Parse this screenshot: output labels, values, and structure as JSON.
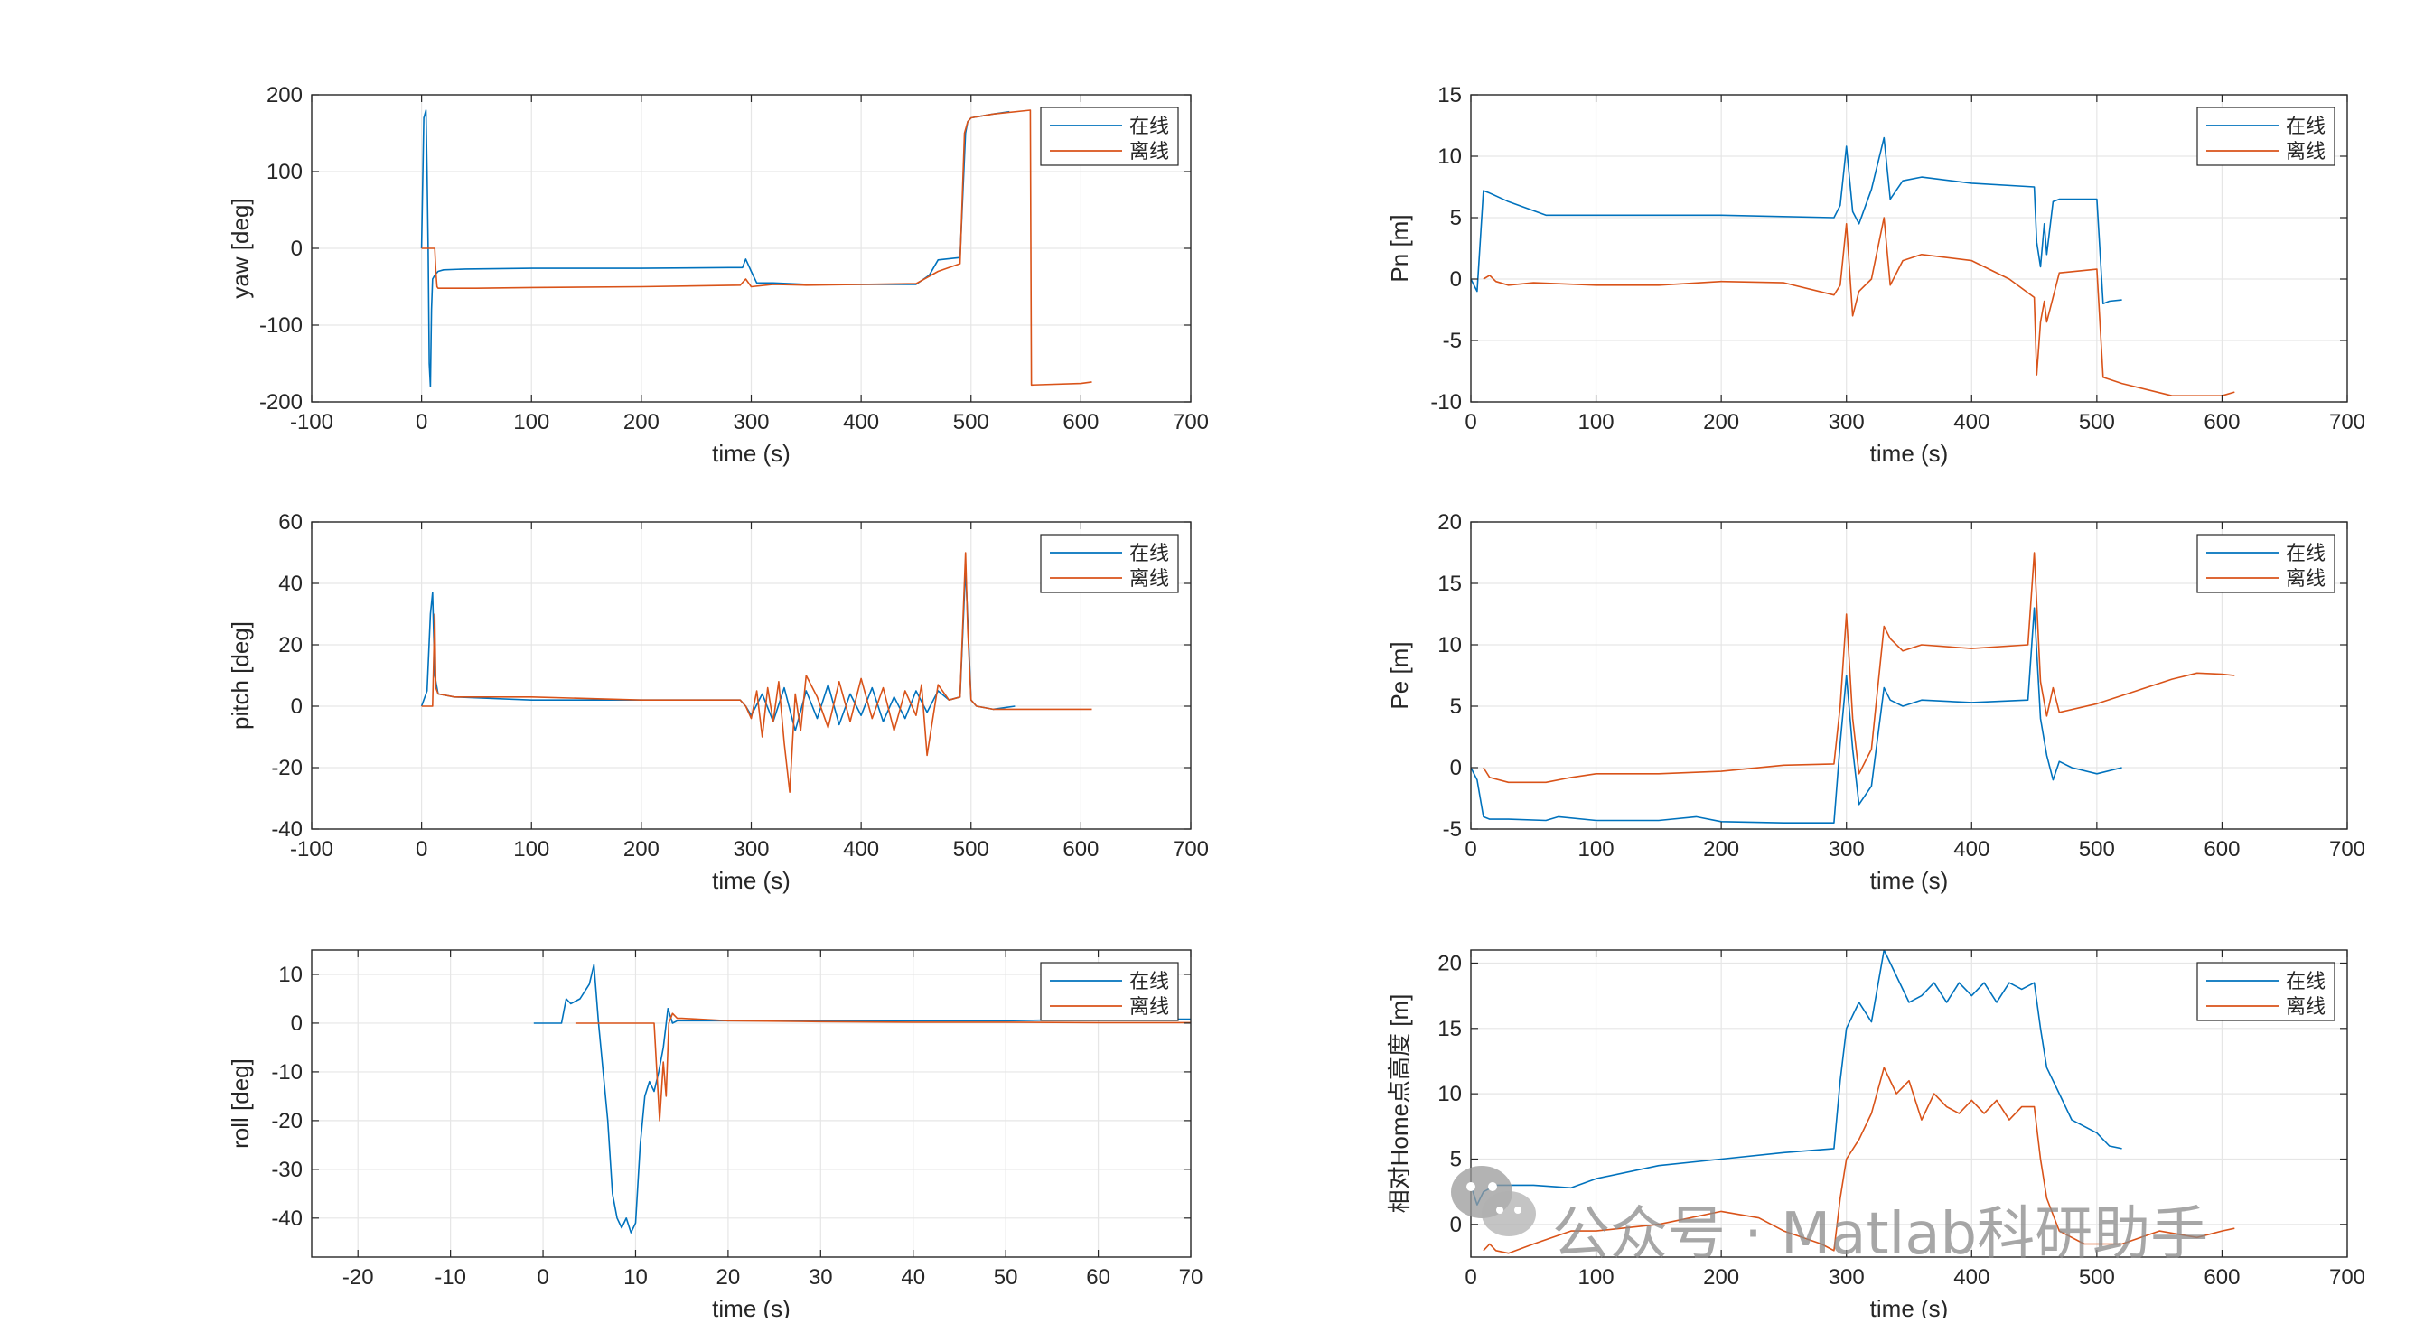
{
  "colors": {
    "online": "#0072BD",
    "offline": "#D95319",
    "axis": "#262626",
    "grid": "#E6E6E6"
  },
  "legend": {
    "online": "在线",
    "offline": "离线"
  },
  "watermark": {
    "icon": "wechat-icon",
    "text": "公众号 · Matlab科研助手"
  },
  "chart_data": [
    {
      "id": "yaw",
      "type": "line",
      "xlabel": "time (s)",
      "ylabel": "yaw [deg]",
      "xlim": [
        -100,
        700
      ],
      "ylim": [
        -200,
        200
      ],
      "xticks": [
        -100,
        0,
        100,
        200,
        300,
        400,
        500,
        600,
        700
      ],
      "yticks": [
        -200,
        -100,
        0,
        100,
        200
      ],
      "grid": true,
      "legend_position": "top-right",
      "series": [
        {
          "name": "在线",
          "x": [
            0,
            2,
            4,
            5,
            6,
            7,
            8,
            9,
            10,
            12,
            15,
            20,
            40,
            100,
            200,
            280,
            292,
            295,
            300,
            305,
            320,
            350,
            400,
            450,
            462,
            470,
            490,
            495,
            497,
            500,
            520,
            535
          ],
          "y": [
            0,
            170,
            180,
            100,
            0,
            -150,
            -180,
            -80,
            -40,
            -35,
            -30,
            -28,
            -27,
            -26,
            -26,
            -25,
            -25,
            -14,
            -30,
            -45,
            -45,
            -47,
            -47,
            -47,
            -35,
            -15,
            -12,
            150,
            165,
            170,
            175,
            178
          ]
        },
        {
          "name": "离线",
          "x": [
            0,
            5,
            10,
            12,
            13,
            14,
            15,
            20,
            50,
            100,
            200,
            290,
            295,
            300,
            320,
            350,
            400,
            450,
            470,
            490,
            494,
            497,
            500,
            520,
            554,
            555,
            600,
            610
          ],
          "y": [
            0,
            0,
            0,
            0,
            -30,
            -50,
            -52,
            -52,
            -52,
            -51,
            -50,
            -48,
            -40,
            -50,
            -47,
            -48,
            -47,
            -46,
            -30,
            -20,
            150,
            165,
            170,
            175,
            180,
            -178,
            -176,
            -174
          ]
        }
      ]
    },
    {
      "id": "pn",
      "type": "line",
      "xlabel": "time (s)",
      "ylabel": "Pn [m]",
      "xlim": [
        0,
        700
      ],
      "ylim": [
        -10,
        15
      ],
      "xticks": [
        0,
        100,
        200,
        300,
        400,
        500,
        600,
        700
      ],
      "yticks": [
        -10,
        -5,
        0,
        5,
        10,
        15
      ],
      "grid": true,
      "legend_position": "top-right",
      "series": [
        {
          "name": "在线",
          "x": [
            0,
            5,
            10,
            15,
            30,
            60,
            100,
            200,
            290,
            295,
            300,
            305,
            310,
            320,
            330,
            335,
            345,
            360,
            400,
            450,
            452,
            455,
            458,
            460,
            465,
            470,
            500,
            505,
            510,
            520
          ],
          "y": [
            0,
            -1,
            7.2,
            7.0,
            6.3,
            5.2,
            5.2,
            5.2,
            5.0,
            6.0,
            10.8,
            5.5,
            4.5,
            7.3,
            11.5,
            6.5,
            8.0,
            8.3,
            7.8,
            7.5,
            3.0,
            1.0,
            4.5,
            2.0,
            6.3,
            6.5,
            6.5,
            -2.0,
            -1.8,
            -1.7
          ]
        },
        {
          "name": "离线",
          "x": [
            10,
            15,
            20,
            30,
            50,
            100,
            150,
            200,
            250,
            290,
            295,
            300,
            305,
            310,
            320,
            330,
            335,
            345,
            360,
            400,
            430,
            450,
            452,
            455,
            458,
            460,
            470,
            500,
            505,
            520,
            560,
            600,
            610
          ],
          "y": [
            0,
            0.3,
            -0.2,
            -0.5,
            -0.3,
            -0.5,
            -0.5,
            -0.2,
            -0.3,
            -1.3,
            -0.5,
            4.5,
            -3.0,
            -1.0,
            0,
            5.0,
            -0.5,
            1.5,
            2.0,
            1.5,
            0,
            -1.5,
            -7.8,
            -3.5,
            -1.8,
            -3.5,
            0.5,
            0.8,
            -8.0,
            -8.5,
            -9.5,
            -9.5,
            -9.2
          ]
        }
      ]
    },
    {
      "id": "pitch",
      "type": "line",
      "xlabel": "time (s)",
      "ylabel": "pitch [deg]",
      "xlim": [
        -100,
        700
      ],
      "ylim": [
        -40,
        60
      ],
      "xticks": [
        -100,
        0,
        100,
        200,
        300,
        400,
        500,
        600,
        700
      ],
      "yticks": [
        -40,
        -20,
        0,
        20,
        40,
        60
      ],
      "grid": true,
      "legend_position": "top-right",
      "series": [
        {
          "name": "在线",
          "x": [
            0,
            5,
            8,
            10,
            12,
            15,
            30,
            100,
            200,
            290,
            295,
            300,
            310,
            320,
            330,
            340,
            350,
            360,
            370,
            380,
            390,
            400,
            410,
            420,
            430,
            440,
            450,
            460,
            470,
            480,
            490,
            495,
            498,
            500,
            505,
            520,
            540
          ],
          "y": [
            0,
            5,
            30,
            37,
            10,
            4,
            3,
            2,
            2,
            2,
            0,
            -3,
            4,
            -5,
            6,
            -8,
            5,
            -4,
            7,
            -6,
            4,
            -3,
            6,
            -5,
            3,
            -4,
            5,
            -2,
            5,
            2,
            3,
            45,
            20,
            2,
            0,
            -1,
            0
          ]
        },
        {
          "name": "离线",
          "x": [
            0,
            10,
            12,
            13,
            15,
            30,
            100,
            200,
            290,
            295,
            300,
            305,
            310,
            315,
            320,
            325,
            330,
            335,
            340,
            345,
            350,
            360,
            370,
            380,
            390,
            400,
            410,
            420,
            430,
            440,
            450,
            455,
            460,
            470,
            480,
            490,
            495,
            497,
            500,
            505,
            520,
            560,
            610
          ],
          "y": [
            0,
            0,
            30,
            6,
            4,
            3,
            3,
            2,
            2,
            0,
            -4,
            5,
            -10,
            6,
            -5,
            8,
            -12,
            -28,
            4,
            -8,
            10,
            3,
            -7,
            8,
            -5,
            9,
            -4,
            6,
            -8,
            5,
            -3,
            7,
            -16,
            7,
            2,
            3,
            50,
            25,
            2,
            0,
            -1,
            -1,
            -1
          ]
        }
      ]
    },
    {
      "id": "pe",
      "type": "line",
      "xlabel": "time (s)",
      "ylabel": "Pe [m]",
      "xlim": [
        0,
        700
      ],
      "ylim": [
        -5,
        20
      ],
      "xticks": [
        0,
        100,
        200,
        300,
        400,
        500,
        600,
        700
      ],
      "yticks": [
        -5,
        0,
        5,
        10,
        15,
        20
      ],
      "grid": true,
      "legend_position": "top-right",
      "series": [
        {
          "name": "在线",
          "x": [
            0,
            5,
            10,
            15,
            30,
            60,
            70,
            100,
            150,
            180,
            200,
            250,
            290,
            295,
            300,
            305,
            310,
            320,
            330,
            335,
            345,
            360,
            400,
            445,
            450,
            455,
            460,
            465,
            470,
            480,
            500,
            520
          ],
          "y": [
            0,
            -1,
            -4,
            -4.2,
            -4.2,
            -4.3,
            -4.0,
            -4.3,
            -4.3,
            -4.0,
            -4.4,
            -4.5,
            -4.5,
            2.0,
            7.5,
            1.5,
            -3.0,
            -1.5,
            6.5,
            5.5,
            5.0,
            5.5,
            5.3,
            5.5,
            13.0,
            4.0,
            1.0,
            -1.0,
            0.5,
            0,
            -0.5,
            0
          ]
        },
        {
          "name": "离线",
          "x": [
            10,
            15,
            30,
            60,
            80,
            100,
            150,
            200,
            250,
            290,
            295,
            300,
            305,
            310,
            320,
            330,
            335,
            345,
            360,
            400,
            445,
            450,
            455,
            460,
            465,
            470,
            500,
            530,
            560,
            580,
            600,
            610
          ],
          "y": [
            0,
            -0.8,
            -1.2,
            -1.2,
            -0.8,
            -0.5,
            -0.5,
            -0.3,
            0.2,
            0.3,
            5.0,
            12.5,
            4.0,
            -0.5,
            1.5,
            11.5,
            10.5,
            9.5,
            10.0,
            9.7,
            10.0,
            17.5,
            7.0,
            4.2,
            6.5,
            4.5,
            5.2,
            6.2,
            7.2,
            7.7,
            7.6,
            7.5
          ]
        }
      ]
    },
    {
      "id": "roll",
      "type": "line",
      "xlabel": "time (s)",
      "ylabel": "roll [deg]",
      "xlim": [
        -25,
        70
      ],
      "ylim": [
        -48,
        15
      ],
      "xticks": [
        -20,
        -10,
        0,
        10,
        20,
        30,
        40,
        50,
        60,
        70
      ],
      "yticks": [
        -40,
        -30,
        -20,
        -10,
        0,
        10
      ],
      "grid": true,
      "legend_position": "top-right",
      "series": [
        {
          "name": "在线",
          "x": [
            -1,
            2,
            2.5,
            3,
            4,
            5,
            5.5,
            6,
            7,
            7.5,
            8,
            8.5,
            9,
            9.5,
            10,
            10.5,
            11,
            11.5,
            12,
            12.5,
            13,
            13.5,
            14,
            14.5,
            15,
            20,
            30,
            40,
            50,
            60,
            70
          ],
          "y": [
            0,
            0,
            5,
            4,
            5,
            8,
            12,
            0,
            -20,
            -35,
            -40,
            -42,
            -40,
            -43,
            -41,
            -25,
            -15,
            -12,
            -14,
            -10,
            -5,
            3,
            0,
            0.5,
            0.5,
            0.5,
            0.5,
            0.5,
            0.5,
            0.8,
            0.8
          ]
        },
        {
          "name": "离线",
          "x": [
            3.5,
            10,
            12,
            12.3,
            12.6,
            13,
            13.3,
            13.6,
            14,
            14.5,
            15,
            20,
            30,
            40,
            50,
            60,
            70
          ],
          "y": [
            0,
            0,
            0,
            -10,
            -20,
            -8,
            -15,
            0,
            2,
            1,
            1,
            0.5,
            0.3,
            0.2,
            0.2,
            0.1,
            0.1
          ]
        }
      ]
    },
    {
      "id": "height",
      "type": "line",
      "xlabel": "time (s)",
      "ylabel": "相对Home点高度 [m]",
      "xlim": [
        0,
        700
      ],
      "ylim": [
        -2.5,
        21
      ],
      "xticks": [
        0,
        100,
        200,
        300,
        400,
        500,
        600,
        700
      ],
      "yticks": [
        0,
        5,
        10,
        15,
        20
      ],
      "grid": true,
      "legend_position": "top-right",
      "series": [
        {
          "name": "在线",
          "x": [
            0,
            5,
            10,
            20,
            50,
            80,
            100,
            150,
            200,
            250,
            290,
            295,
            300,
            310,
            320,
            330,
            340,
            350,
            360,
            370,
            380,
            390,
            400,
            410,
            420,
            430,
            440,
            450,
            455,
            460,
            470,
            480,
            490,
            500,
            510,
            520
          ],
          "y": [
            3,
            1.5,
            2.5,
            3.0,
            3.0,
            2.8,
            3.5,
            4.5,
            5.0,
            5.5,
            5.8,
            11.0,
            15.0,
            17.0,
            15.5,
            21.0,
            19.0,
            17.0,
            17.5,
            18.5,
            17.0,
            18.5,
            17.5,
            18.5,
            17.0,
            18.5,
            18.0,
            18.5,
            15.0,
            12.0,
            10.0,
            8.0,
            7.5,
            7.0,
            6.0,
            5.8
          ]
        },
        {
          "name": "离线",
          "x": [
            10,
            15,
            20,
            30,
            50,
            80,
            100,
            120,
            150,
            200,
            230,
            250,
            280,
            290,
            295,
            300,
            310,
            320,
            330,
            340,
            350,
            360,
            370,
            380,
            390,
            400,
            410,
            420,
            430,
            440,
            450,
            455,
            460,
            470,
            480,
            490,
            500,
            520,
            550,
            580,
            600,
            610
          ],
          "y": [
            -2,
            -1.5,
            -2.0,
            -2.2,
            -1.5,
            -0.5,
            -0.5,
            -0.3,
            0.0,
            1.0,
            0.5,
            -0.5,
            -1.5,
            -2.0,
            2.0,
            5.0,
            6.5,
            8.5,
            12.0,
            10.0,
            11.0,
            8.0,
            10.0,
            9.0,
            8.5,
            9.5,
            8.5,
            9.5,
            8.0,
            9.0,
            9.0,
            5.0,
            2.0,
            -0.5,
            -1.0,
            -1.5,
            -1.5,
            -1.5,
            -0.5,
            -1.0,
            -0.5,
            -0.3
          ]
        }
      ]
    }
  ]
}
